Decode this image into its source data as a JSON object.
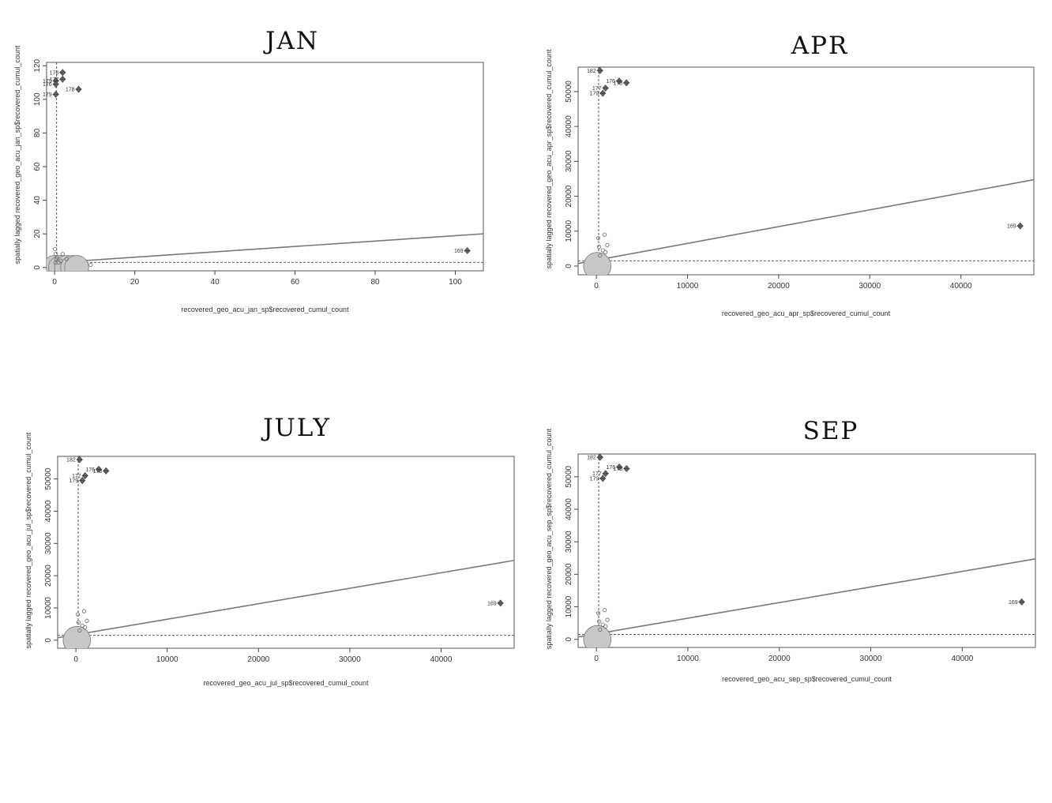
{
  "chart_data": [
    {
      "type": "scatter",
      "title": "JAN",
      "xlabel": "recovered_geo_acu_jan_sp$recovered_cumul_count",
      "ylabel": "spatially lagged recovered_geo_acu_jan_sp$recovered_cumul_count",
      "xlim": [
        -2,
        107
      ],
      "ylim": [
        -2,
        122
      ],
      "xticks": [
        0,
        20,
        40,
        60,
        80,
        100
      ],
      "yticks": [
        0,
        20,
        40,
        60,
        80,
        100,
        120
      ],
      "mean_x": 0.5,
      "mean_y": 3,
      "regression": {
        "intercept": 2.9,
        "slope": 0.16
      },
      "points": [
        [
          0.2,
          2.8
        ],
        [
          0.4,
          5
        ],
        [
          0.3,
          8
        ],
        [
          0.1,
          11
        ],
        [
          2,
          8
        ],
        [
          9,
          1.5
        ],
        [
          1.5,
          4
        ],
        [
          0.6,
          6
        ],
        [
          1,
          3
        ],
        [
          3,
          5
        ]
      ],
      "influential_points": [
        {
          "label": "176",
          "x": 2,
          "y": 116
        },
        {
          "label": "179",
          "x": 0.3,
          "y": 111
        },
        {
          "label": "176",
          "x": 0.3,
          "y": 109
        },
        {
          "label": "177",
          "x": 2,
          "y": 112
        },
        {
          "label": "178",
          "x": 6,
          "y": 106
        },
        {
          "label": "179",
          "x": 0.3,
          "y": 103
        },
        {
          "label": "169",
          "x": 103,
          "y": 10
        }
      ],
      "bubbles": [
        [
          0,
          0,
          3
        ],
        [
          1.5,
          0,
          3
        ],
        [
          3,
          0,
          3
        ],
        [
          4.5,
          0,
          3
        ],
        [
          5.5,
          0,
          3
        ]
      ]
    },
    {
      "type": "scatter",
      "title": "APR",
      "xlabel": "recovered_geo_acu_apr_sp$recovered_cumul_count",
      "ylabel": "spatially lagged recovered_geo_acu_apr_sp$recovered_cumul_count",
      "xlim": [
        -2000,
        48000
      ],
      "ylim": [
        -2500,
        57000
      ],
      "xticks": [
        0,
        10000,
        20000,
        30000,
        40000
      ],
      "yticks": [
        0,
        10000,
        20000,
        30000,
        40000,
        50000
      ],
      "mean_x": 250,
      "mean_y": 1500,
      "regression": {
        "intercept": 1700,
        "slope": 0.48
      },
      "points": [
        [
          200,
          8000
        ],
        [
          900,
          9000
        ],
        [
          1200,
          6000
        ],
        [
          700,
          4500
        ],
        [
          400,
          3000
        ],
        [
          1000,
          4000
        ],
        [
          300,
          5500
        ]
      ],
      "influential_points": [
        {
          "label": "182",
          "x": 400,
          "y": 56000
        },
        {
          "label": "176",
          "x": 2500,
          "y": 53000
        },
        {
          "label": "177",
          "x": 1000,
          "y": 51000
        },
        {
          "label": "179",
          "x": 700,
          "y": 49500
        },
        {
          "label": "178",
          "x": 3300,
          "y": 52500
        },
        {
          "label": "169",
          "x": 46500,
          "y": 11500
        }
      ],
      "bubbles": [
        [
          100,
          0,
          1500
        ]
      ]
    },
    {
      "type": "scatter",
      "title": "JULY",
      "xlabel": "recovered_geo_acu_jul_sp$recovered_cumul_count",
      "ylabel": "spatially lagged recovered_geo_acu_jul_sp$recovered_cumul_count",
      "xlim": [
        -2000,
        48000
      ],
      "ylim": [
        -2500,
        57000
      ],
      "xticks": [
        0,
        10000,
        20000,
        30000,
        40000
      ],
      "yticks": [
        0,
        10000,
        20000,
        30000,
        40000,
        50000
      ],
      "mean_x": 250,
      "mean_y": 1500,
      "regression": {
        "intercept": 1700,
        "slope": 0.48
      },
      "points": [
        [
          200,
          8000
        ],
        [
          900,
          9000
        ],
        [
          1200,
          6000
        ],
        [
          700,
          4500
        ],
        [
          400,
          3000
        ],
        [
          1000,
          4000
        ],
        [
          300,
          5500
        ]
      ],
      "influential_points": [
        {
          "label": "182",
          "x": 400,
          "y": 56000
        },
        {
          "label": "176",
          "x": 2500,
          "y": 53000
        },
        {
          "label": "177",
          "x": 1000,
          "y": 51000
        },
        {
          "label": "179",
          "x": 700,
          "y": 49500
        },
        {
          "label": "178",
          "x": 3300,
          "y": 52500
        },
        {
          "label": "169",
          "x": 46500,
          "y": 11500
        }
      ],
      "bubbles": [
        [
          100,
          0,
          1500
        ]
      ]
    },
    {
      "type": "scatter",
      "title": "SEP",
      "xlabel": "recovered_geo_acu_sep_sp$recovered_cumul_count",
      "ylabel": "spatially lagged recovered_geo_acu_sep_sp$recovered_cumul_count",
      "xlim": [
        -2000,
        48000
      ],
      "ylim": [
        -2500,
        57000
      ],
      "xticks": [
        0,
        10000,
        20000,
        30000,
        40000
      ],
      "yticks": [
        0,
        10000,
        20000,
        30000,
        40000,
        50000
      ],
      "mean_x": 250,
      "mean_y": 1500,
      "regression": {
        "intercept": 1700,
        "slope": 0.48
      },
      "points": [
        [
          200,
          8000
        ],
        [
          900,
          9000
        ],
        [
          1200,
          6000
        ],
        [
          700,
          4500
        ],
        [
          400,
          3000
        ],
        [
          1000,
          4000
        ],
        [
          300,
          5500
        ]
      ],
      "influential_points": [
        {
          "label": "182",
          "x": 400,
          "y": 56000
        },
        {
          "label": "176",
          "x": 2500,
          "y": 53000
        },
        {
          "label": "177",
          "x": 1000,
          "y": 51000
        },
        {
          "label": "179",
          "x": 700,
          "y": 49500
        },
        {
          "label": "178",
          "x": 3300,
          "y": 52500
        },
        {
          "label": "169",
          "x": 46500,
          "y": 11500
        }
      ],
      "bubbles": [
        [
          100,
          0,
          1500
        ]
      ]
    }
  ]
}
